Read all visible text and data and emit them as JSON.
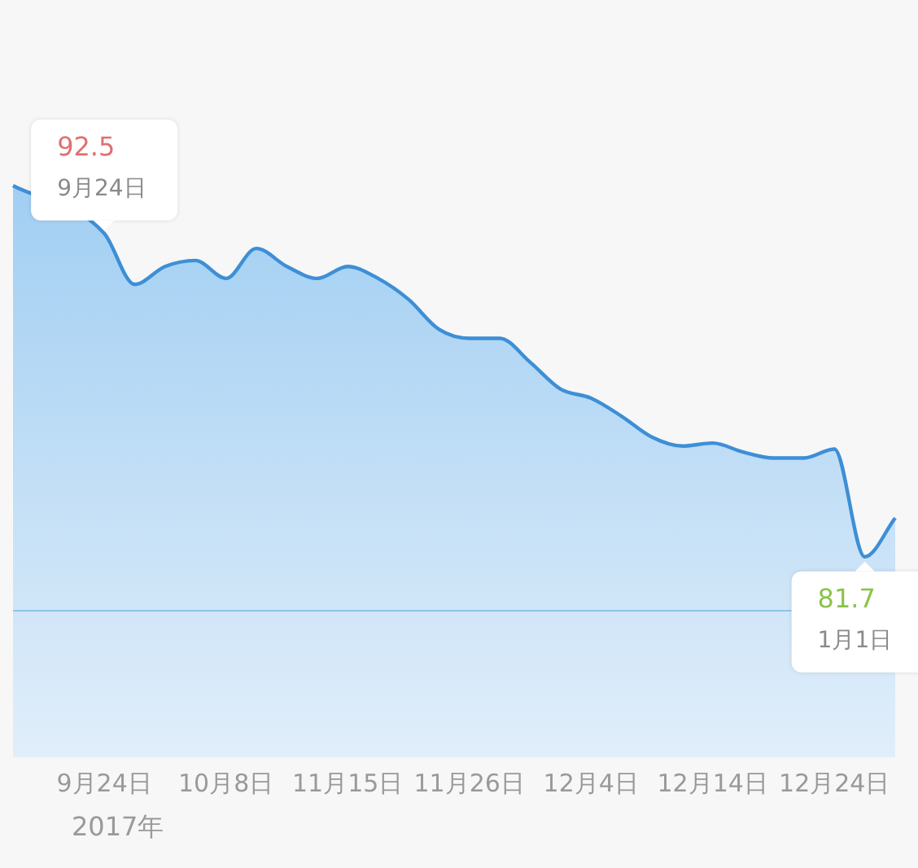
{
  "chart_data": {
    "type": "area",
    "categories": [
      null,
      null,
      null,
      "9月24日",
      null,
      null,
      null,
      "10月8日",
      null,
      null,
      null,
      "11月15日",
      null,
      null,
      null,
      "11月26日",
      null,
      null,
      null,
      "12月4日",
      null,
      null,
      null,
      "12月14日",
      null,
      null,
      null,
      "12月24日",
      null,
      null
    ],
    "series": [
      {
        "color": "#3d8fd6",
        "values": [
          94.1,
          null,
          null,
          92.5,
          90.8,
          91.4,
          91.6,
          91.0,
          92.0,
          91.4,
          91.0,
          91.4,
          91.0,
          90.3,
          89.3,
          89.0,
          89.0,
          88.2,
          87.3,
          87.0,
          86.4,
          85.7,
          85.4,
          85.5,
          85.2,
          85.0,
          85.0,
          85.3,
          81.7,
          83.0
        ],
        "value_labels": [
          null,
          null,
          null,
          "92.5",
          null,
          null,
          null,
          null,
          null,
          null,
          null,
          null,
          null,
          null,
          null,
          null,
          null,
          null,
          null,
          null,
          null,
          null,
          null,
          null,
          null,
          null,
          null,
          null,
          "81.7",
          null
        ]
      }
    ],
    "tick_labels": "x",
    "grid": false,
    "legend": false,
    "marker": "none",
    "ref_lines": [
      {
        "axis": "y",
        "value": 79.9,
        "color": "#8ec5e8"
      }
    ],
    "annotations": [
      "9月24日",
      "1月1日",
      "2017年"
    ]
  }
}
